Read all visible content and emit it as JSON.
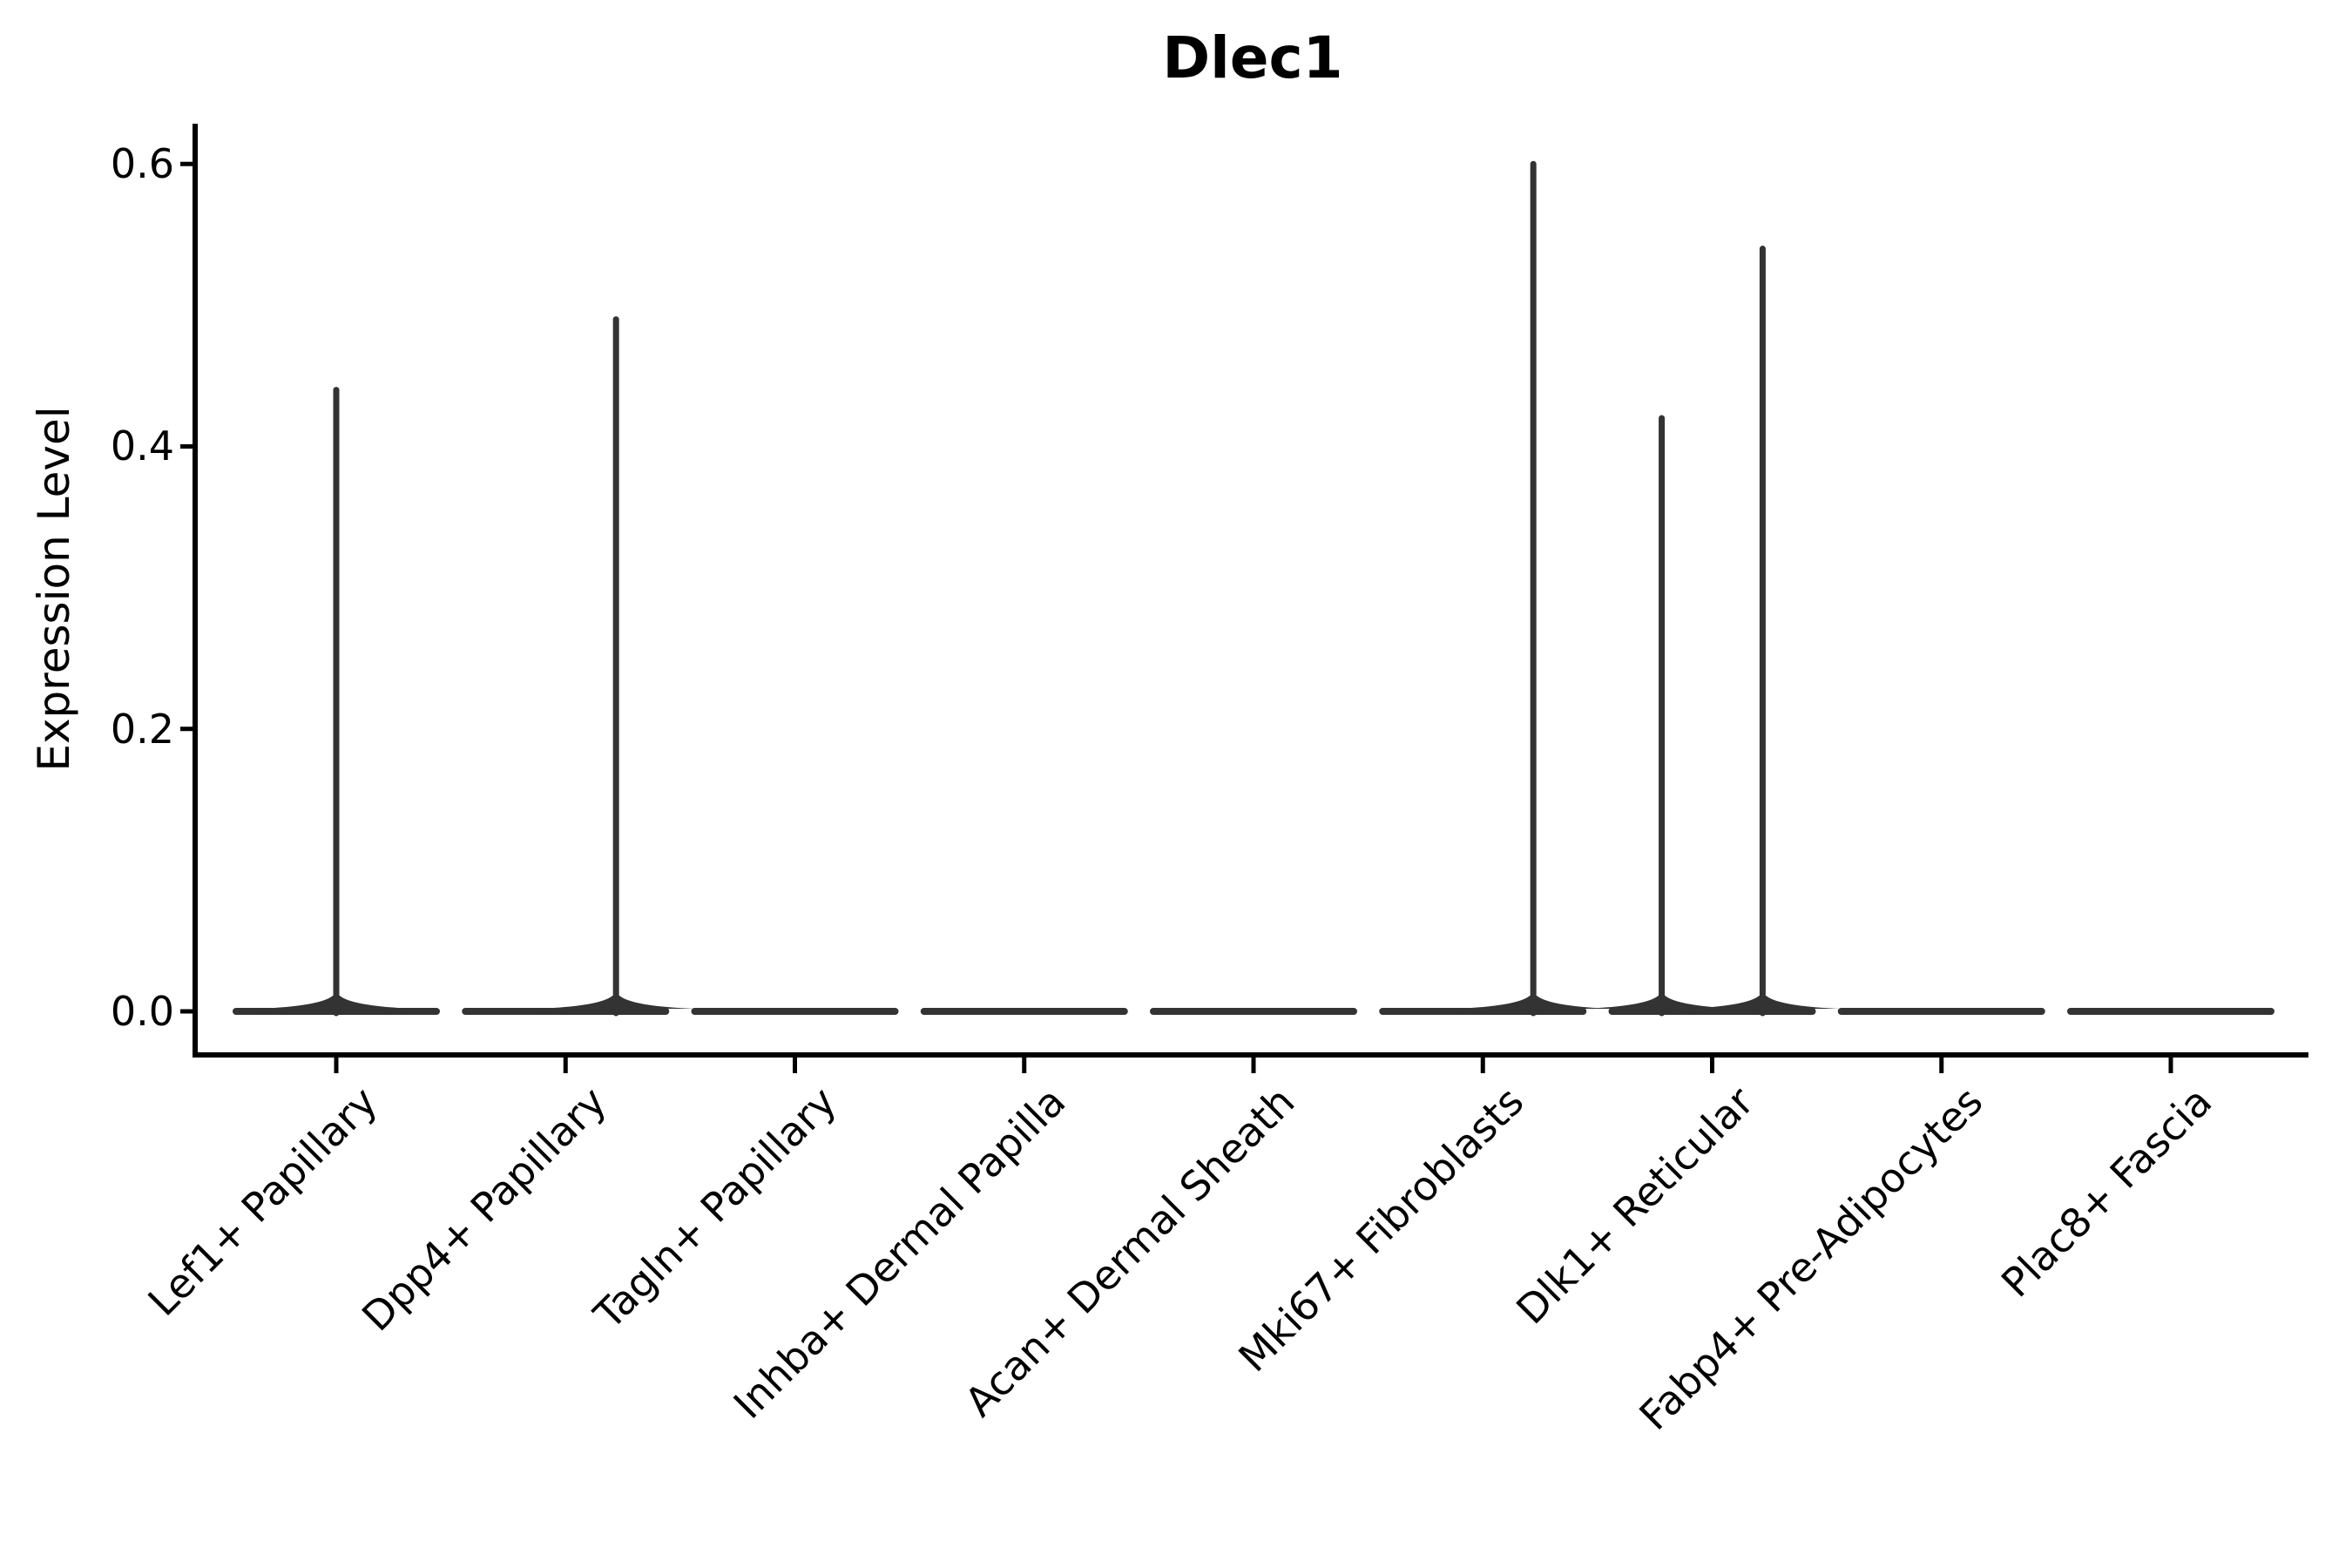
{
  "title": "Dlec1",
  "axes": {
    "ylabel": "Expression Level",
    "xlabel": ""
  },
  "colors": {
    "violin": "#333333",
    "axis": "#000000",
    "text": "#000000",
    "background": "#ffffff"
  },
  "chart_data": {
    "type": "violin",
    "title": "Dlec1",
    "xlabel": "",
    "ylabel": "Expression Level",
    "ylim": [
      -0.03,
      0.66
    ],
    "yticks": [
      0.0,
      0.2,
      0.4,
      0.6
    ],
    "ytick_labels": [
      "0.0",
      "0.2",
      "0.4",
      "0.6"
    ],
    "grid": false,
    "legend": "none",
    "categories": [
      "Lef1+ Papillary",
      "Dpp4+ Papillary",
      "Tagln+ Papillary",
      "Inhba+ Dermal Papilla",
      "Acan+ Dermal Sheath",
      "Mki67+ Fibroblasts",
      "Dlk1+ Reticular",
      "Fabp4+ Pre-Adipocytes",
      "Plac8+ Fascia"
    ],
    "description": "Violin plot of Dlec1 expression; all populations have the bulk of cells at 0 (flat violin body at baseline) with thin density spikes for rare expressing cells.",
    "violins": [
      {
        "category": "Lef1+ Papillary",
        "baseline_value": 0.0,
        "max_expression": 0.44,
        "spikes": [
          {
            "value": 0.44,
            "x_offset_frac": 0.0
          }
        ]
      },
      {
        "category": "Dpp4+ Papillary",
        "baseline_value": 0.0,
        "max_expression": 0.49,
        "spikes": [
          {
            "value": 0.49,
            "x_offset_frac": 0.22
          }
        ]
      },
      {
        "category": "Tagln+ Papillary",
        "baseline_value": 0.0,
        "max_expression": 0.0,
        "spikes": []
      },
      {
        "category": "Inhba+ Dermal Papilla",
        "baseline_value": 0.0,
        "max_expression": 0.0,
        "spikes": []
      },
      {
        "category": "Acan+ Dermal Sheath",
        "baseline_value": 0.0,
        "max_expression": 0.0,
        "spikes": []
      },
      {
        "category": "Mki67+ Fibroblasts",
        "baseline_value": 0.0,
        "max_expression": 0.6,
        "spikes": [
          {
            "value": 0.6,
            "x_offset_frac": 0.22
          }
        ]
      },
      {
        "category": "Dlk1+ Reticular",
        "baseline_value": 0.0,
        "max_expression": 0.54,
        "spikes": [
          {
            "value": 0.42,
            "x_offset_frac": -0.22
          },
          {
            "value": 0.54,
            "x_offset_frac": 0.22
          }
        ]
      },
      {
        "category": "Fabp4+ Pre-Adipocytes",
        "baseline_value": 0.0,
        "max_expression": 0.0,
        "spikes": []
      },
      {
        "category": "Plac8+ Fascia",
        "baseline_value": 0.0,
        "max_expression": 0.0,
        "spikes": []
      }
    ]
  }
}
